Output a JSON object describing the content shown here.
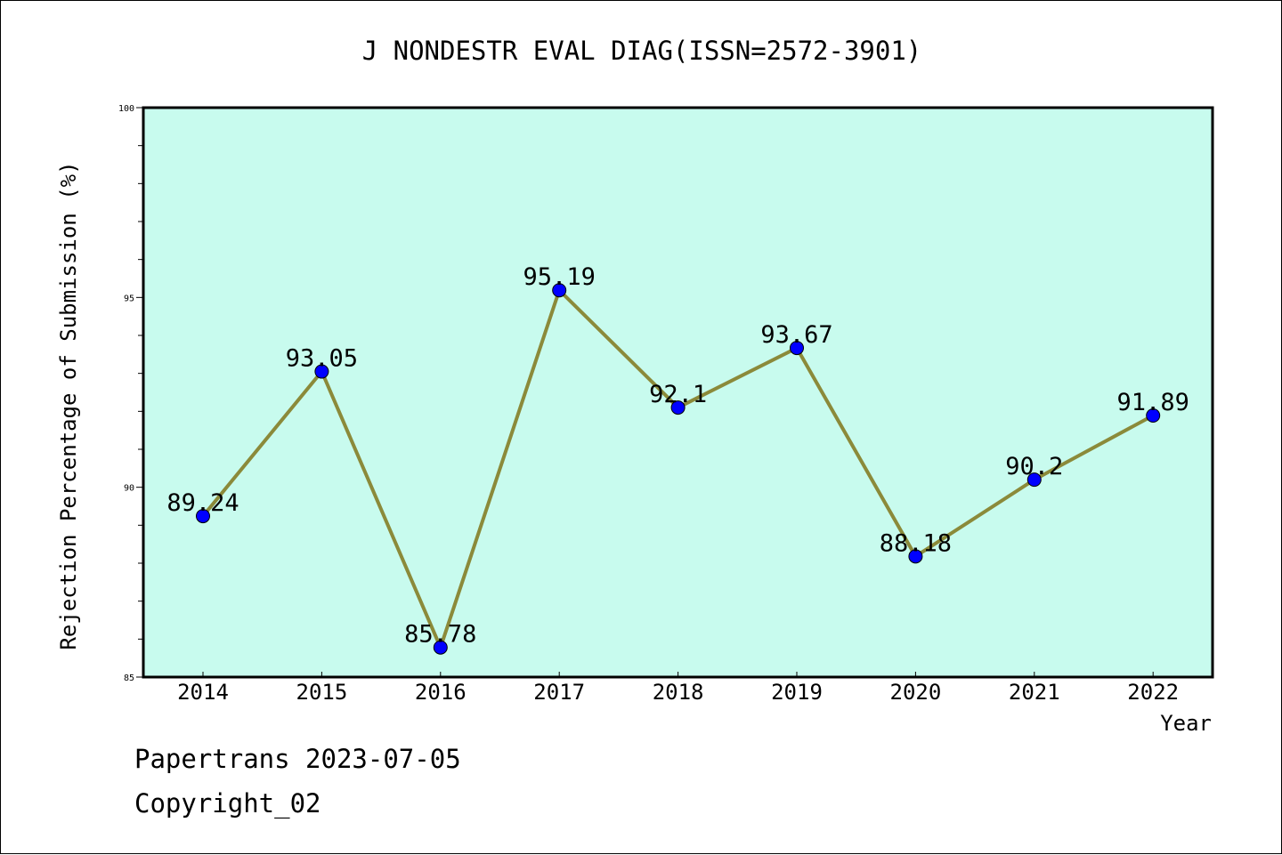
{
  "chart_data": {
    "type": "line",
    "title": "J NONDESTR EVAL DIAG(ISSN=2572-3901)",
    "xlabel": "Year",
    "ylabel": "Rejection Percentage of Submission (%)",
    "categories": [
      "2014",
      "2015",
      "2016",
      "2017",
      "2018",
      "2019",
      "2020",
      "2021",
      "2022"
    ],
    "series": [
      {
        "values": [
          89.24,
          93.05,
          85.78,
          95.19,
          92.1,
          93.67,
          88.18,
          90.2,
          91.89
        ],
        "data_labels": [
          "89.24",
          "93.05",
          "85.78",
          "95.19",
          "92.1",
          "93.67",
          "88.18",
          "90.2",
          "91.89"
        ],
        "line_color": "#8b8a3a",
        "marker_color": "#0000ff"
      }
    ],
    "ylim": [
      85,
      100
    ],
    "yticks": [
      "85",
      "90",
      "95",
      "100"
    ],
    "grid": false,
    "plot_background": "#c8fbee"
  },
  "footer": {
    "line1": "Papertrans 2023-07-05",
    "line2": "Copyright_02"
  }
}
